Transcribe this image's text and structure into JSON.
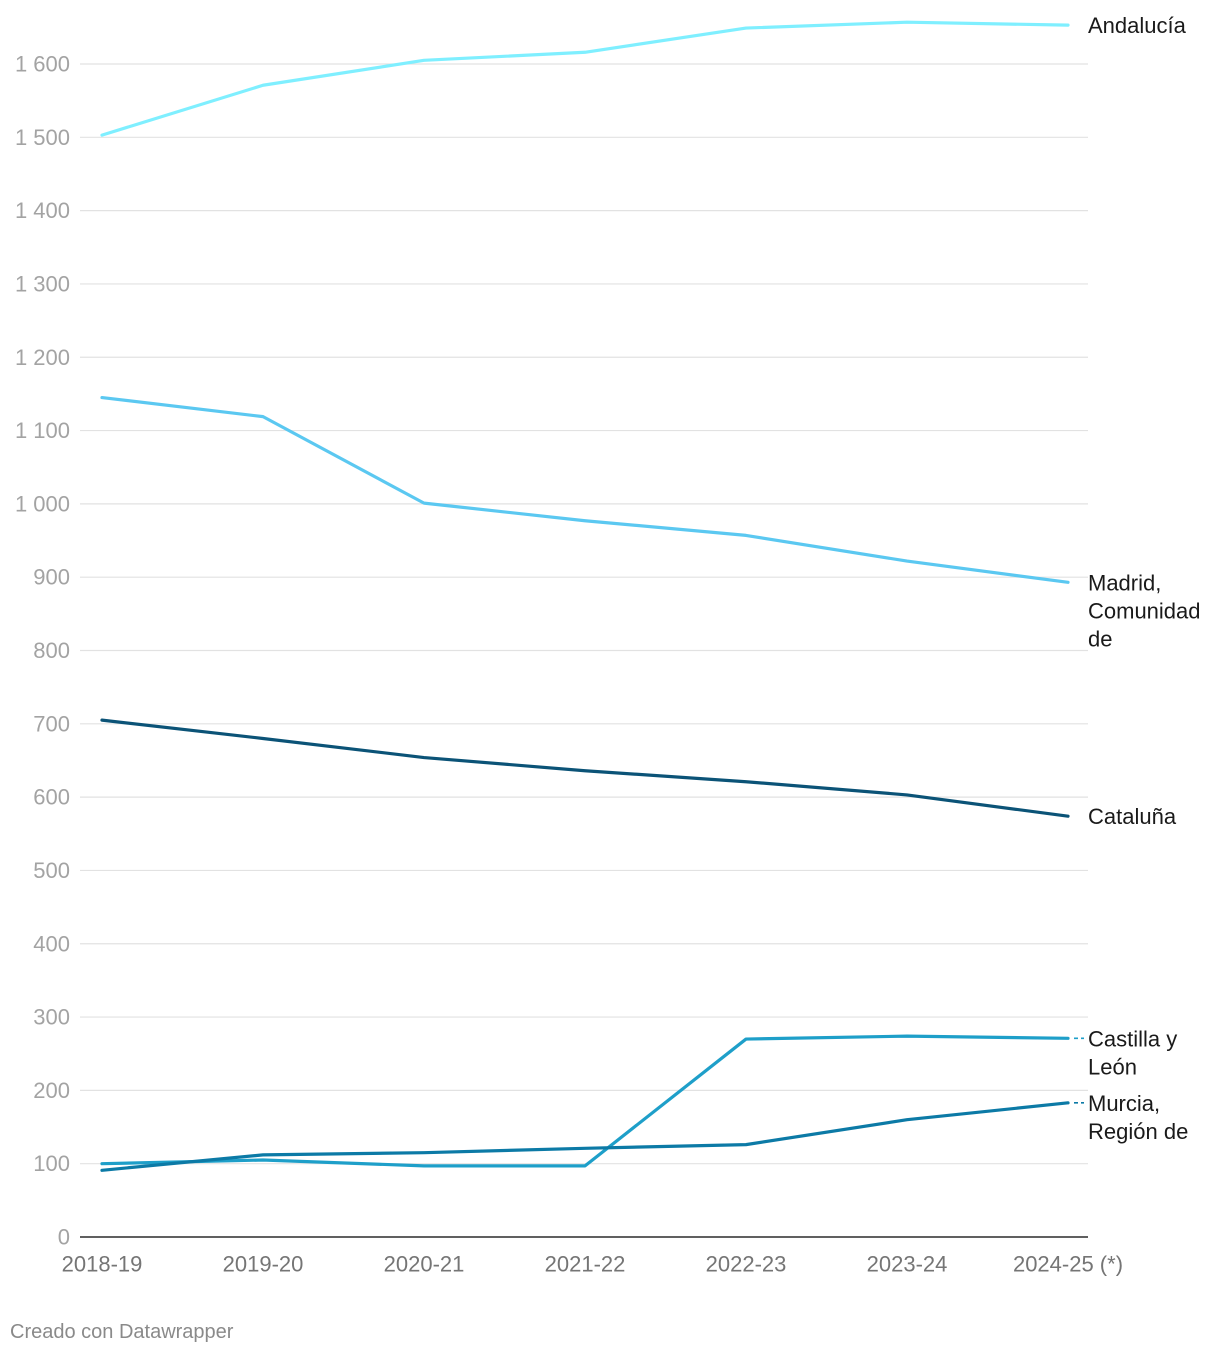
{
  "chart_data": {
    "type": "line",
    "title": "",
    "xlabel": "",
    "ylabel": "",
    "grid": true,
    "legend": "right",
    "ylim": [
      0,
      1600
    ],
    "yticks": [
      0,
      100,
      200,
      300,
      400,
      500,
      600,
      700,
      800,
      900,
      1000,
      1100,
      1200,
      1300,
      1400,
      1500,
      1600
    ],
    "ytick_labels": [
      "0",
      "100",
      "200",
      "300",
      "400",
      "500",
      "600",
      "700",
      "800",
      "900",
      "1 000",
      "1 100",
      "1 200",
      "1 300",
      "1 400",
      "1 500",
      "1 600"
    ],
    "categories": [
      "2018-19",
      "2019-20",
      "2020-21",
      "2021-22",
      "2022-23",
      "2023-24",
      "2024-25 (*)"
    ],
    "series": [
      {
        "name": "Andalucía",
        "color": "#7FEFFF",
        "values": [
          1503,
          1571,
          1605,
          1616,
          1649,
          1657,
          1653
        ],
        "label_connector": false
      },
      {
        "name": "Madrid, Comunidad de",
        "color": "#5BC8F1",
        "values": [
          1145,
          1119,
          1001,
          977,
          957,
          922,
          893
        ],
        "label_connector": false
      },
      {
        "name": "Cataluña",
        "color": "#0B5377",
        "values": [
          705,
          680,
          654,
          636,
          621,
          603,
          574
        ],
        "label_connector": false
      },
      {
        "name": "Castilla y León",
        "color": "#1E9FC9",
        "values": [
          100,
          105,
          97,
          97,
          270,
          274,
          271
        ],
        "label_connector": true
      },
      {
        "name": "Murcia, Región de",
        "color": "#0C7AA6",
        "values": [
          91,
          112,
          115,
          121,
          126,
          160,
          183
        ],
        "label_connector": true
      }
    ]
  },
  "footer": {
    "credit": "Creado con Datawrapper"
  }
}
